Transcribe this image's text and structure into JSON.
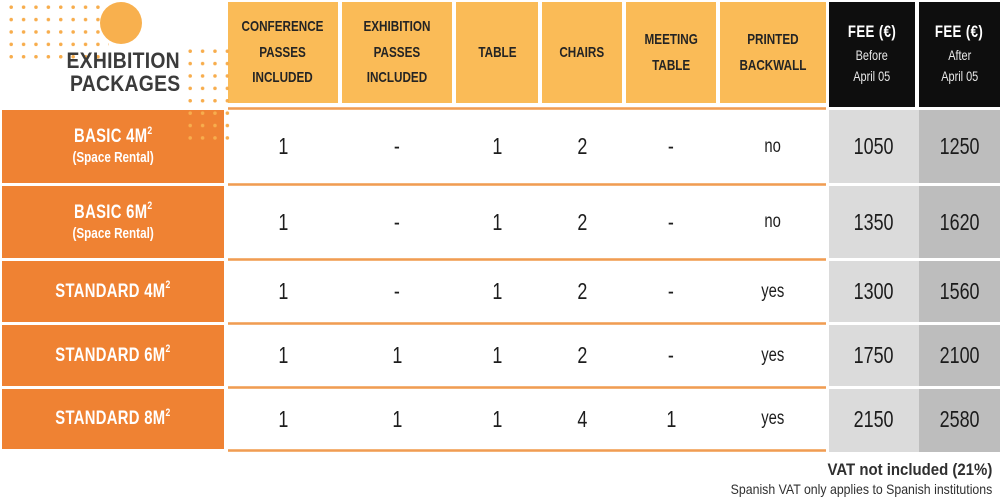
{
  "title": {
    "line1": "EXHIBITION",
    "line2": "PACKAGES"
  },
  "header": {
    "columns": [
      "CONFERENCE\nPASSES\nINCLUDED",
      "EXHIBITION\nPASSES\nINCLUDED",
      "TABLE",
      "CHAIRS",
      "MEETING\nTABLE",
      "PRINTED\nBACKWALL"
    ],
    "fee_before": {
      "title": "FEE (€)",
      "sub": "Before\nApril 05"
    },
    "fee_after": {
      "title": "FEE (€)",
      "sub": "After\nApril 05"
    }
  },
  "rows": [
    {
      "name": "BASIC 4M",
      "sup": "2",
      "subtitle": "(Space Rental)",
      "values": [
        "1",
        "-",
        "1",
        "2",
        "-",
        "no",
        "1050",
        "1250"
      ]
    },
    {
      "name": "BASIC 6M",
      "sup": "2",
      "subtitle": "(Space Rental)",
      "values": [
        "1",
        "-",
        "1",
        "2",
        "-",
        "no",
        "1350",
        "1620"
      ]
    },
    {
      "name": "STANDARD 4M",
      "sup": "2",
      "values": [
        "1",
        "-",
        "1",
        "2",
        "-",
        "yes",
        "1300",
        "1560"
      ]
    },
    {
      "name": "STANDARD 6M",
      "sup": "2",
      "values": [
        "1",
        "1",
        "1",
        "2",
        "-",
        "yes",
        "1750",
        "2100"
      ]
    },
    {
      "name": "STANDARD 8M",
      "sup": "2",
      "values": [
        "1",
        "1",
        "1",
        "4",
        "1",
        "yes",
        "2150",
        "2580"
      ]
    }
  ],
  "footer": {
    "line1": "VAT not included (21%)",
    "line2": "Spanish VAT only applies to Spanish institutions"
  },
  "colors": {
    "header_orange": "#FABB57",
    "label_orange": "#EF8233",
    "separator_orange": "#F09C54",
    "fee_header_black": "#0E0E0E",
    "fee_before_gray": "#DBDBDB",
    "fee_after_gray": "#BDBDBD",
    "dot_decoration": "#F7AD4D",
    "circle_decoration": "#F8B04E"
  },
  "chart_data": {
    "type": "table",
    "title": "EXHIBITION PACKAGES",
    "columns": [
      "Package",
      "Conference passes included",
      "Exhibition passes included",
      "Table",
      "Chairs",
      "Meeting table",
      "Printed backwall",
      "Fee (€) before April 05",
      "Fee (€) after April 05"
    ],
    "rows": [
      [
        "BASIC 4M² (Space Rental)",
        "1",
        "-",
        "1",
        "2",
        "-",
        "no",
        1050,
        1250
      ],
      [
        "BASIC 6M² (Space Rental)",
        "1",
        "-",
        "1",
        "2",
        "-",
        "no",
        1350,
        1620
      ],
      [
        "STANDARD 4M²",
        "1",
        "-",
        "1",
        "2",
        "-",
        "yes",
        1300,
        1560
      ],
      [
        "STANDARD 6M²",
        "1",
        "1",
        "1",
        "2",
        "-",
        "yes",
        1750,
        2100
      ],
      [
        "STANDARD 8M²",
        "1",
        "1",
        "1",
        "4",
        "1",
        "yes",
        2150,
        2580
      ]
    ],
    "notes": [
      "VAT not included (21%)",
      "Spanish VAT only applies to Spanish institutions"
    ]
  }
}
